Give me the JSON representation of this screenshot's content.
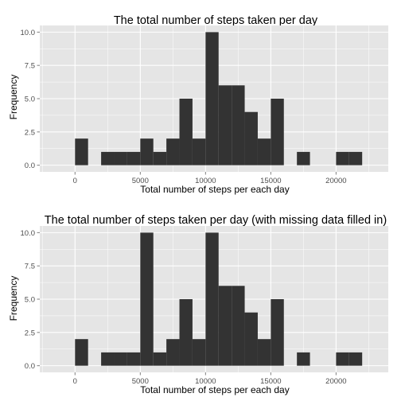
{
  "chart_data": [
    {
      "type": "bar",
      "title": "The total number of steps taken per day",
      "xlabel": "Total number of steps per each day",
      "ylabel": "Frequency",
      "bin_width": 1000,
      "x": [
        0,
        2000,
        3000,
        4000,
        5000,
        6000,
        7000,
        8000,
        9000,
        10000,
        11000,
        12000,
        13000,
        14000,
        15000,
        17000,
        20000,
        21000
      ],
      "values": [
        2,
        1,
        1,
        1,
        2,
        1,
        2,
        5,
        2,
        10,
        6,
        6,
        4,
        2,
        5,
        1,
        1,
        1
      ],
      "xlim": [
        -2700,
        24000
      ],
      "ylim": [
        -0.5,
        10.5
      ],
      "xticks": [
        0,
        5000,
        10000,
        15000,
        20000
      ],
      "xtick_labels": [
        "0",
        "5000",
        "10000",
        "15000",
        "20000"
      ],
      "yticks": [
        0,
        2.5,
        5,
        7.5,
        10
      ],
      "ytick_labels": [
        "0.0",
        "2.5",
        "5.0",
        "7.5",
        "10.0"
      ],
      "grid": true,
      "colors": {
        "panel": "#e5e5e5",
        "grid": "#ffffff",
        "bar": "#333333",
        "text": "#000000",
        "tick_label": "#4d4d4d"
      }
    },
    {
      "type": "bar",
      "title": "The total number of steps taken per day (with missing data filled in)",
      "xlabel": "Total number of steps per each day",
      "ylabel": "Frequency",
      "bin_width": 1000,
      "x": [
        0,
        2000,
        3000,
        4000,
        5000,
        6000,
        7000,
        8000,
        9000,
        10000,
        11000,
        12000,
        13000,
        14000,
        15000,
        17000,
        20000,
        21000
      ],
      "values": [
        2,
        1,
        1,
        1,
        10,
        1,
        2,
        5,
        2,
        10,
        6,
        6,
        4,
        2,
        5,
        1,
        1,
        1
      ],
      "xlim": [
        -2700,
        24000
      ],
      "ylim": [
        -0.5,
        10.5
      ],
      "xticks": [
        0,
        5000,
        10000,
        15000,
        20000
      ],
      "xtick_labels": [
        "0",
        "5000",
        "10000",
        "15000",
        "20000"
      ],
      "yticks": [
        0,
        2.5,
        5,
        7.5,
        10
      ],
      "ytick_labels": [
        "0.0",
        "2.5",
        "5.0",
        "7.5",
        "10.0"
      ],
      "grid": true,
      "colors": {
        "panel": "#e5e5e5",
        "grid": "#ffffff",
        "bar": "#333333",
        "text": "#000000",
        "tick_label": "#4d4d4d"
      }
    }
  ]
}
